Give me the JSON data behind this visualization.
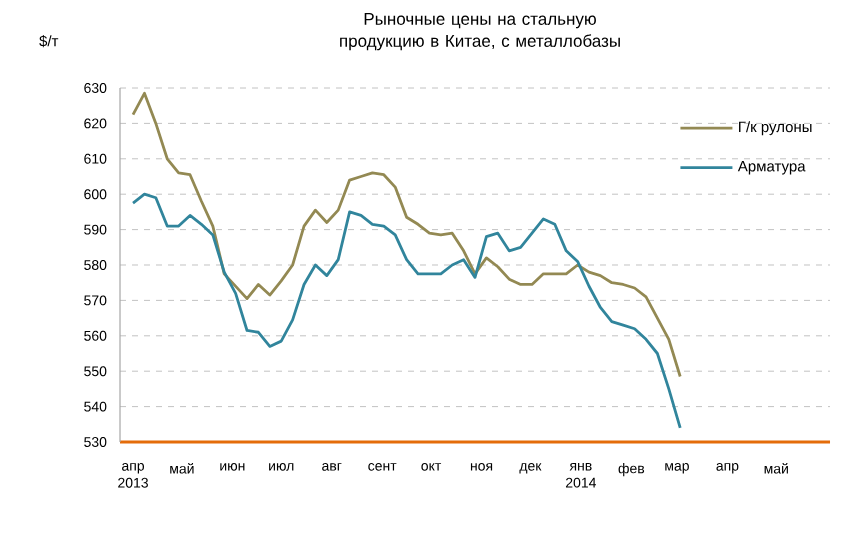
{
  "chart_data": {
    "type": "line",
    "title": "Рыночные цены на стальную продукцию в Китае, с металлобазы",
    "ylabel": "$/т",
    "x": [
      "2013-04-01",
      "2013-04-08",
      "2013-04-15",
      "2013-04-22",
      "2013-04-29",
      "2013-05-06",
      "2013-05-13",
      "2013-05-20",
      "2013-05-27",
      "2013-06-03",
      "2013-06-10",
      "2013-06-17",
      "2013-06-24",
      "2013-07-01",
      "2013-07-08",
      "2013-07-15",
      "2013-07-22",
      "2013-07-29",
      "2013-08-05",
      "2013-08-12",
      "2013-08-19",
      "2013-08-26",
      "2013-09-02",
      "2013-09-09",
      "2013-09-16",
      "2013-09-23",
      "2013-09-30",
      "2013-10-07",
      "2013-10-14",
      "2013-10-21",
      "2013-10-28",
      "2013-11-04",
      "2013-11-11",
      "2013-11-18",
      "2013-11-25",
      "2013-12-02",
      "2013-12-09",
      "2013-12-16",
      "2013-12-23",
      "2013-12-30",
      "2014-01-06",
      "2014-01-13",
      "2014-01-20",
      "2014-01-27",
      "2014-02-03",
      "2014-02-10",
      "2014-02-17",
      "2014-02-24",
      "2014-03-03"
    ],
    "series": [
      {
        "name": "Г/к рулоны",
        "color": "#938953",
        "values": [
          622.5,
          628.5,
          620,
          610,
          606,
          605.5,
          598,
          591,
          577.5,
          574,
          570.5,
          574.5,
          571.5,
          575.5,
          580,
          591,
          595.5,
          592,
          595.5,
          604,
          605,
          606,
          605.5,
          602,
          593.5,
          591.5,
          589,
          588.5,
          589,
          584,
          577.5,
          582,
          579.5,
          576,
          574.5,
          574.5,
          577.5,
          577.5,
          577.5,
          580,
          578,
          577,
          575,
          574.5,
          573.5,
          571,
          565,
          559,
          548.5
        ]
      },
      {
        "name": "Арматура",
        "color": "#31859c",
        "values": [
          597.5,
          600,
          599,
          591,
          591,
          594,
          591.5,
          588.5,
          578,
          572,
          561.5,
          561,
          557,
          558.5,
          564.5,
          574.5,
          580,
          577,
          581.5,
          595,
          594,
          591.5,
          591,
          588.5,
          581.5,
          577.5,
          577.5,
          577.5,
          580,
          581.5,
          576.5,
          588,
          589,
          584,
          585,
          589,
          593,
          591.5,
          584,
          581,
          574,
          568,
          564,
          563,
          562,
          559,
          555,
          545,
          534
        ]
      }
    ],
    "xlim": [
      "2013-03-24",
      "2014-06-03"
    ],
    "xticks": [
      {
        "value": "2013-04-01",
        "label": "апр 2013"
      },
      {
        "value": "2013-05-01",
        "label": "май"
      },
      {
        "value": "2013-06-01",
        "label": "июн"
      },
      {
        "value": "2013-07-01",
        "label": "июл"
      },
      {
        "value": "2013-08-01",
        "label": "авг"
      },
      {
        "value": "2013-09-01",
        "label": "сент"
      },
      {
        "value": "2013-10-01",
        "label": "окт"
      },
      {
        "value": "2013-11-01",
        "label": "ноя"
      },
      {
        "value": "2013-12-01",
        "label": "дек"
      },
      {
        "value": "2014-01-01",
        "label": "янв 2014"
      },
      {
        "value": "2014-02-01",
        "label": "фев"
      },
      {
        "value": "2014-03-01",
        "label": "мар"
      },
      {
        "value": "2014-04-01",
        "label": "апр"
      },
      {
        "value": "2014-05-01",
        "label": "май"
      }
    ],
    "ylim": [
      530,
      630
    ],
    "yticks": [
      530,
      540,
      550,
      560,
      570,
      580,
      590,
      600,
      610,
      620,
      630
    ],
    "grid": "y",
    "legend": "top right"
  }
}
